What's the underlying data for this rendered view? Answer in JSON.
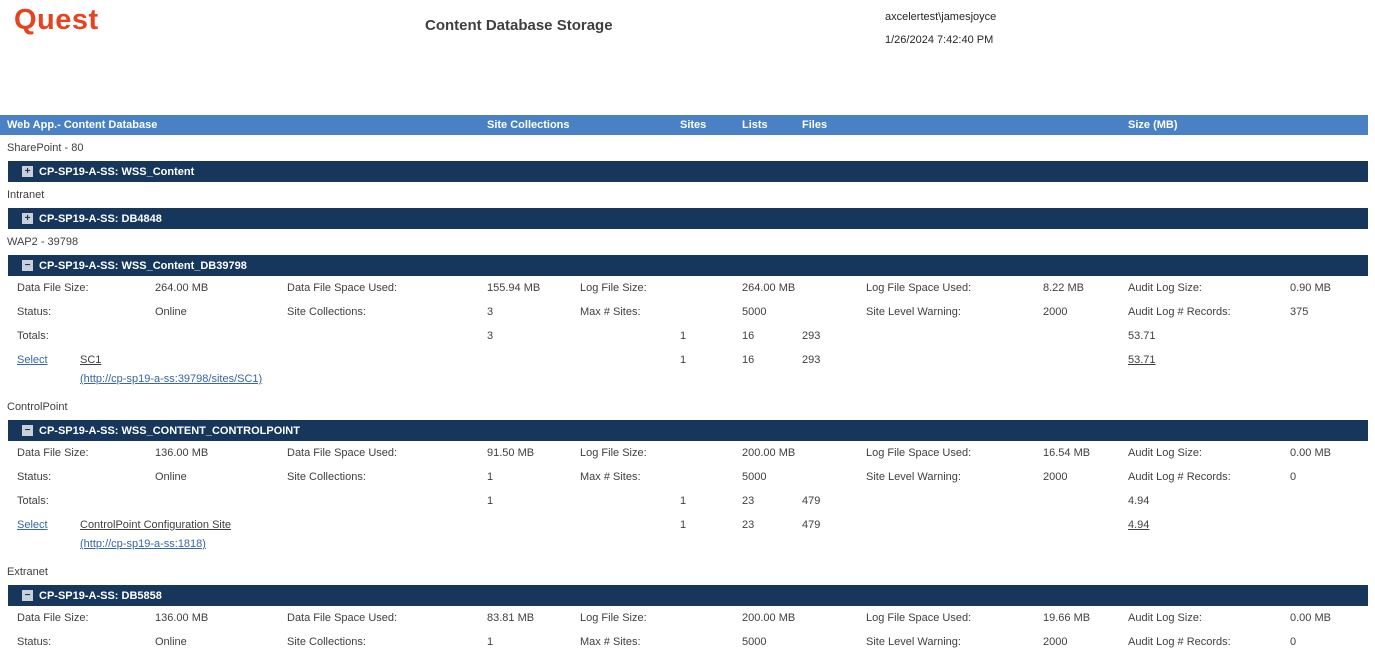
{
  "header": {
    "logo": "Quest",
    "title": "Content Database Storage",
    "user": "axcelertest\\jamesjoyce",
    "timestamp": "1/26/2024 7:42:40 PM"
  },
  "columns": {
    "web_app": "Web App.- Content Database",
    "site_collections": "Site Collections",
    "sites": "Sites",
    "lists": "Lists",
    "files": "Files",
    "size": "Size (MB)"
  },
  "detail_labels": {
    "data_file_size": "Data File Size:",
    "data_file_space_used": "Data File Space Used:",
    "log_file_size": "Log File Size:",
    "log_file_space_used": "Log File Space Used:",
    "audit_log_size": "Audit Log Size:",
    "status": "Status:",
    "site_collections": "Site Collections:",
    "max_sites": "Max # Sites:",
    "site_level_warning": "Site Level Warning:",
    "audit_log_records": "Audit Log # Records:",
    "totals": "Totals:",
    "select": "Select"
  },
  "icons": {
    "expand": "+",
    "collapse": "−"
  },
  "colors": {
    "brand_orange": "#E8431F",
    "header_blue": "#4A80C4",
    "bar_navy": "#16365C",
    "link_blue": "#3667A6"
  },
  "groups": [
    {
      "web_app": "SharePoint - 80",
      "databases": [
        {
          "name": "CP-SP19-A-SS: WSS_Content",
          "expanded": false
        }
      ]
    },
    {
      "web_app": "Intranet",
      "databases": [
        {
          "name": "CP-SP19-A-SS: DB4848",
          "expanded": false
        }
      ]
    },
    {
      "web_app": "WAP2 - 39798",
      "databases": [
        {
          "name": "CP-SP19-A-SS: WSS_Content_DB39798",
          "expanded": true,
          "details": {
            "data_file_size": "264.00 MB",
            "data_file_space_used": "155.94 MB",
            "log_file_size": "264.00 MB",
            "log_file_space_used": "8.22 MB",
            "audit_log_size": "0.90 MB",
            "status": "Online",
            "site_collections": "3",
            "max_sites": "5000",
            "site_level_warning": "2000",
            "audit_log_records": "375"
          },
          "totals": {
            "site_collections": "3",
            "sites": "1",
            "lists": "16",
            "files": "293",
            "size": "53.71"
          },
          "sites": [
            {
              "name": "SC1",
              "url": "(http://cp-sp19-a-ss:39798/sites/SC1)",
              "sites": "1",
              "lists": "16",
              "files": "293",
              "size": "53.71"
            }
          ]
        }
      ]
    },
    {
      "web_app": "ControlPoint",
      "databases": [
        {
          "name": "CP-SP19-A-SS: WSS_CONTENT_CONTROLPOINT",
          "expanded": true,
          "details": {
            "data_file_size": "136.00 MB",
            "data_file_space_used": "91.50 MB",
            "log_file_size": "200.00 MB",
            "log_file_space_used": "16.54 MB",
            "audit_log_size": "0.00 MB",
            "status": "Online",
            "site_collections": "1",
            "max_sites": "5000",
            "site_level_warning": "2000",
            "audit_log_records": "0"
          },
          "totals": {
            "site_collections": "1",
            "sites": "1",
            "lists": "23",
            "files": "479",
            "size": "4.94"
          },
          "sites": [
            {
              "name": "ControlPoint Configuration Site",
              "url": "(http://cp-sp19-a-ss:1818)",
              "sites": "1",
              "lists": "23",
              "files": "479",
              "size": "4.94"
            }
          ]
        }
      ]
    },
    {
      "web_app": "Extranet",
      "databases": [
        {
          "name": "CP-SP19-A-SS: DB5858",
          "expanded": true,
          "details": {
            "data_file_size": "136.00 MB",
            "data_file_space_used": "83.81 MB",
            "log_file_size": "200.00 MB",
            "log_file_space_used": "19.66 MB",
            "audit_log_size": "0.00 MB",
            "status": "Online",
            "site_collections": "1",
            "max_sites": "5000",
            "site_level_warning": "2000",
            "audit_log_records": "0"
          }
        }
      ]
    }
  ]
}
